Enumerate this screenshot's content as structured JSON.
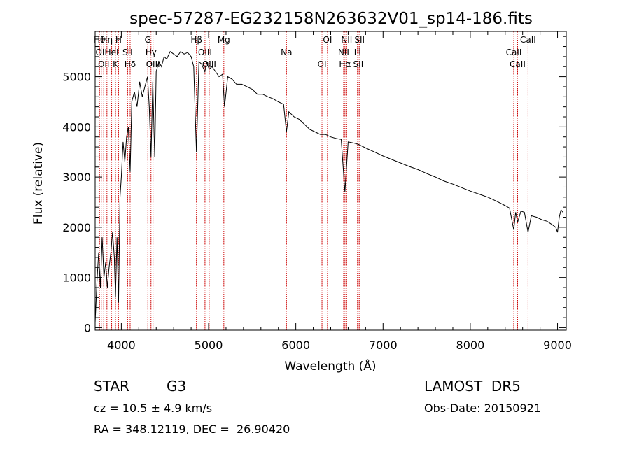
{
  "chart_data": {
    "type": "line",
    "title": "spec-57287-EG232158N263632V01_sp14-186.fits",
    "xlabel": "Wavelength (Å)",
    "ylabel": "Flux (relative)",
    "xlim": [
      3700,
      9100
    ],
    "ylim": [
      -50,
      5900
    ],
    "x_ticks": [
      4000,
      5000,
      6000,
      7000,
      8000,
      9000
    ],
    "y_ticks": [
      0,
      1000,
      2000,
      3000,
      4000,
      5000
    ],
    "grid": false,
    "series": [
      {
        "x": [
          3700,
          3720,
          3740,
          3760,
          3780,
          3800,
          3820,
          3840,
          3860,
          3880,
          3900,
          3920,
          3933,
          3950,
          3968,
          3985,
          4000,
          4020,
          4040,
          4060,
          4080,
          4101,
          4120,
          4150,
          4180,
          4210,
          4240,
          4270,
          4300,
          4320,
          4340,
          4360,
          4383,
          4400,
          4430,
          4460,
          4490,
          4520,
          4560,
          4600,
          4640,
          4680,
          4720,
          4760,
          4800,
          4830,
          4861,
          4890,
          4920,
          4957,
          4980,
          5007,
          5040,
          5080,
          5120,
          5160,
          5183,
          5220,
          5270,
          5320,
          5380,
          5440,
          5500,
          5560,
          5620,
          5680,
          5740,
          5800,
          5860,
          5893,
          5920,
          5980,
          6040,
          6100,
          6160,
          6220,
          6280,
          6340,
          6400,
          6460,
          6520,
          6563,
          6600,
          6660,
          6720,
          6800,
          6900,
          7000,
          7100,
          7200,
          7300,
          7400,
          7500,
          7600,
          7700,
          7800,
          7900,
          8000,
          8100,
          8200,
          8300,
          8400,
          8450,
          8498,
          8520,
          8542,
          8580,
          8620,
          8662,
          8700,
          8760,
          8820,
          8880,
          8940,
          8980,
          9000,
          9020,
          9040,
          9060
        ],
        "y": [
          100,
          900,
          1500,
          800,
          1800,
          1000,
          1300,
          800,
          1200,
          1500,
          1900,
          1400,
          600,
          1800,
          500,
          2600,
          3000,
          3700,
          3300,
          3800,
          4000,
          3100,
          4500,
          4700,
          4400,
          4900,
          4600,
          4800,
          5000,
          4400,
          3400,
          4900,
          3400,
          5100,
          5300,
          5200,
          5400,
          5350,
          5500,
          5450,
          5400,
          5500,
          5450,
          5480,
          5400,
          5200,
          3500,
          5300,
          5250,
          5100,
          5280,
          5150,
          5200,
          5100,
          5000,
          5050,
          4400,
          5000,
          4950,
          4850,
          4850,
          4800,
          4750,
          4650,
          4650,
          4600,
          4560,
          4500,
          4450,
          3900,
          4300,
          4200,
          4150,
          4050,
          3950,
          3900,
          3850,
          3850,
          3800,
          3770,
          3750,
          2700,
          3700,
          3680,
          3650,
          3580,
          3500,
          3420,
          3350,
          3280,
          3210,
          3150,
          3070,
          3000,
          2920,
          2860,
          2790,
          2720,
          2660,
          2600,
          2520,
          2430,
          2380,
          1950,
          2300,
          2100,
          2320,
          2300,
          1900,
          2230,
          2200,
          2150,
          2120,
          2050,
          2000,
          1900,
          2200,
          2350,
          2300
        ]
      }
    ],
    "lines": [
      {
        "x": 3750,
        "label": "Hθ"
      },
      {
        "x": 3770,
        "label": "OII"
      },
      {
        "x": 3798,
        "label": "OII"
      },
      {
        "x": 3835,
        "label": "Hη"
      },
      {
        "x": 3889,
        "label": "HeI"
      },
      {
        "x": 3933,
        "label": "K"
      },
      {
        "x": 3968,
        "label": "H"
      },
      {
        "x": 4072,
        "label": "SII"
      },
      {
        "x": 4101,
        "label": "Hδ"
      },
      {
        "x": 4304,
        "label": "G"
      },
      {
        "x": 4340,
        "label": "Hγ"
      },
      {
        "x": 4363,
        "label": "OIII"
      },
      {
        "x": 4861,
        "label": "Hβ"
      },
      {
        "x": 4959,
        "label": "OIII"
      },
      {
        "x": 5007,
        "label": "OIII"
      },
      {
        "x": 5175,
        "label": "Mg"
      },
      {
        "x": 5893,
        "label": "Na"
      },
      {
        "x": 6300,
        "label": "OI"
      },
      {
        "x": 6363,
        "label": "OI"
      },
      {
        "x": 6548,
        "label": "NII"
      },
      {
        "x": 6563,
        "label": "Hα"
      },
      {
        "x": 6583,
        "label": "NII"
      },
      {
        "x": 6707,
        "label": "Li"
      },
      {
        "x": 6716,
        "label": "SII"
      },
      {
        "x": 6731,
        "label": "SII"
      },
      {
        "x": 8498,
        "label": "CaII"
      },
      {
        "x": 8542,
        "label": "CaII"
      },
      {
        "x": 8662,
        "label": "CaII"
      }
    ]
  },
  "info": {
    "class_label": "STAR",
    "subclass_label": "G3",
    "redshift_line": "cz = 10.5 ± 4.9 km/s",
    "coords_line": "RA = 348.12119, DEC =  26.90420",
    "survey_label": "LAMOST  DR5",
    "obs_date_line": "Obs-Date: 20150921"
  },
  "colors": {
    "axes": "#000000",
    "spectrum": "#000000",
    "line_markers": "#cc0000"
  }
}
